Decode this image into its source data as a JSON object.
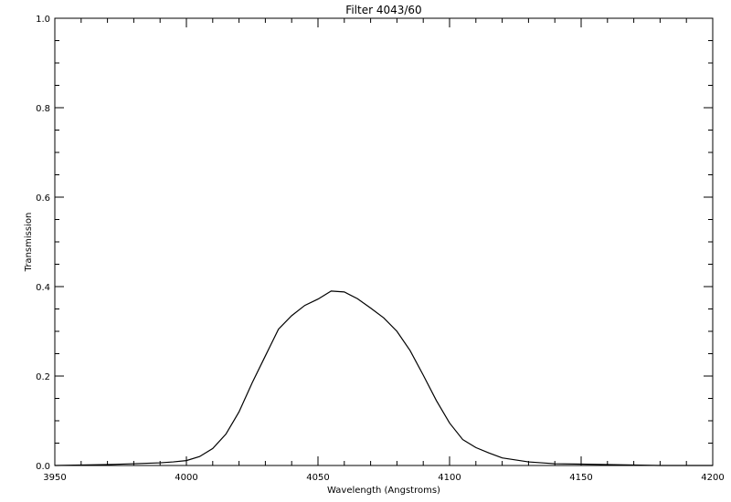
{
  "chart_data": {
    "type": "line",
    "title": "Filter 4043/60",
    "xlabel": "Wavelength (Angstroms)",
    "ylabel": "Transmission",
    "xlim": [
      3950,
      4200
    ],
    "ylim": [
      0.0,
      1.0
    ],
    "x_ticks": [
      3950,
      4000,
      4050,
      4100,
      4150,
      4200
    ],
    "y_ticks": [
      0.0,
      0.2,
      0.4,
      0.6,
      0.8,
      1.0
    ],
    "x_tick_labels": [
      "3950",
      "4000",
      "4050",
      "4100",
      "4150",
      "4200"
    ],
    "y_tick_labels": [
      "0.0",
      "0.2",
      "0.4",
      "0.6",
      "0.8",
      "1.0"
    ],
    "grid": false,
    "series": [
      {
        "color": "#000000",
        "points": [
          [
            3950,
            0.0
          ],
          [
            3960,
            0.001
          ],
          [
            3970,
            0.002
          ],
          [
            3980,
            0.004
          ],
          [
            3990,
            0.006
          ],
          [
            3995,
            0.008
          ],
          [
            4000,
            0.011
          ],
          [
            4005,
            0.02
          ],
          [
            4010,
            0.038
          ],
          [
            4015,
            0.07
          ],
          [
            4020,
            0.12
          ],
          [
            4025,
            0.185
          ],
          [
            4030,
            0.245
          ],
          [
            4035,
            0.305
          ],
          [
            4040,
            0.335
          ],
          [
            4045,
            0.358
          ],
          [
            4050,
            0.372
          ],
          [
            4055,
            0.39
          ],
          [
            4060,
            0.388
          ],
          [
            4065,
            0.373
          ],
          [
            4070,
            0.352
          ],
          [
            4075,
            0.33
          ],
          [
            4080,
            0.3
          ],
          [
            4085,
            0.257
          ],
          [
            4090,
            0.202
          ],
          [
            4095,
            0.145
          ],
          [
            4100,
            0.095
          ],
          [
            4105,
            0.058
          ],
          [
            4110,
            0.04
          ],
          [
            4115,
            0.028
          ],
          [
            4120,
            0.017
          ],
          [
            4130,
            0.008
          ],
          [
            4140,
            0.004
          ],
          [
            4150,
            0.003
          ],
          [
            4160,
            0.002
          ],
          [
            4170,
            0.001
          ],
          [
            4180,
            0.0
          ],
          [
            4190,
            0.0
          ],
          [
            4200,
            0.0
          ]
        ]
      }
    ]
  }
}
